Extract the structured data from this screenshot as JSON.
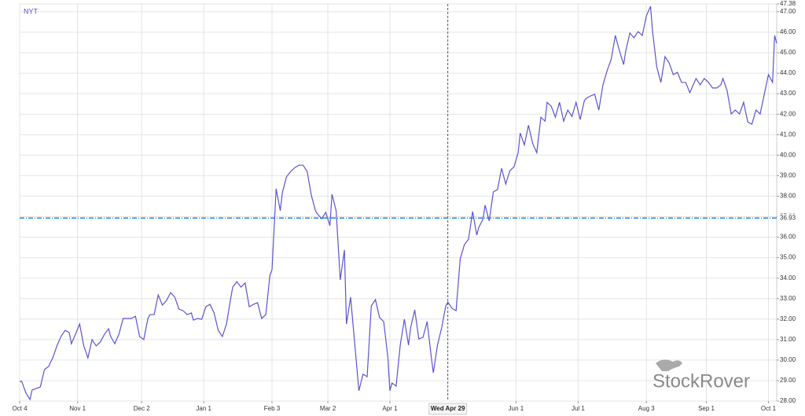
{
  "chart_data": {
    "type": "line",
    "watermark": "StockRover",
    "series": [
      {
        "name": "NYT",
        "color": "#5a55d2",
        "values": [
          28.96,
          28.96,
          28.4,
          28.08,
          28.54,
          28.61,
          28.69,
          29.54,
          29.69,
          30.11,
          30.69,
          31.15,
          31.45,
          31.34,
          30.8,
          31.26,
          31.76,
          30.69,
          30.11,
          31.0,
          30.69,
          30.88,
          31.26,
          31.53,
          31.15,
          30.8,
          31.26,
          32.03,
          32.03,
          32.03,
          32.14,
          31.15,
          31.0,
          32.03,
          32.22,
          32.22,
          33.18,
          32.68,
          32.91,
          33.29,
          33.07,
          32.49,
          32.41,
          32.22,
          32.3,
          31.95,
          32.03,
          31.99,
          32.6,
          32.72,
          32.3,
          31.45,
          31.15,
          31.76,
          32.99,
          33.56,
          33.83,
          33.56,
          33.76,
          32.6,
          32.72,
          32.8,
          32.03,
          32.22,
          34.14,
          34.41,
          38.36,
          37.29,
          38.17,
          38.94,
          39.2,
          39.39,
          39.51,
          39.51,
          39.2,
          38.05,
          37.29,
          37.13,
          36.9,
          37.21,
          36.56,
          38.09,
          37.29,
          33.91,
          35.37,
          31.76,
          33.07,
          30.8,
          28.5,
          29.31,
          29.19,
          32.64,
          32.95,
          32.07,
          31.88,
          30.15,
          28.5,
          28.88,
          28.73,
          30.73,
          31.99,
          30.73,
          31.57,
          32.45,
          31.03,
          31.11,
          31.88,
          30.15,
          29.38,
          30.73,
          31.57,
          32.64,
          32.83,
          32.53,
          32.41,
          34.94,
          35.63,
          35.9,
          37.25,
          36.1,
          36.48,
          36.87,
          37.56,
          36.79,
          38.21,
          38.32,
          39.36,
          38.59,
          39.24,
          39.43,
          40.12,
          41.08,
          40.5,
          41.46,
          40.58,
          40.12,
          41.85,
          41.66,
          42.58,
          42.39,
          41.85,
          42.58,
          41.66,
          42.2,
          41.89,
          42.58,
          41.74,
          42.66,
          42.78,
          42.89,
          42.97,
          42.2,
          43.43,
          44.12,
          44.69,
          45.84,
          45.08,
          44.42,
          45.08,
          45.96,
          45.73,
          46.03,
          45.84,
          46.8,
          47.26,
          46.03,
          44.31,
          43.55,
          44.81,
          44.5,
          43.93,
          44.04,
          43.55,
          43.55,
          43.05,
          43.28,
          43.74,
          43.43,
          43.74,
          43.55,
          43.28,
          43.28,
          43.43,
          43.74,
          43.16,
          42.01,
          42.2,
          42.01,
          42.58,
          41.62,
          41.51,
          42.2,
          42.01,
          42.97,
          43.93,
          43.55,
          45.84,
          45.46
        ]
      }
    ],
    "x": [
      "Oct 4",
      "Oct 5",
      "Oct 7",
      "Oct 9",
      "Oct 10",
      "Oct 12",
      "Oct 14",
      "Oct 16",
      "Oct 18",
      "Oct 20",
      "Oct 22",
      "Oct 24",
      "Oct 26",
      "Oct 28",
      "Oct 29",
      "Oct 31",
      "Nov 2",
      "Nov 4",
      "Nov 6",
      "Nov 8",
      "Nov 10",
      "Nov 12",
      "Nov 14",
      "Nov 16",
      "Nov 17",
      "Nov 19",
      "Nov 21",
      "Nov 23",
      "Nov 25",
      "Nov 27",
      "Nov 29",
      "Dec 1",
      "Dec 3",
      "Dec 5",
      "Dec 6",
      "Dec 8",
      "Dec 10",
      "Dec 12",
      "Dec 14",
      "Dec 16",
      "Dec 18",
      "Dec 20",
      "Dec 22",
      "Dec 24",
      "Dec 26",
      "Dec 27",
      "Dec 29",
      "Dec 31",
      "Jan 2",
      "Jan 4",
      "Jan 6",
      "Jan 8",
      "Jan 10",
      "Jan 12",
      "Jan 14",
      "Jan 15",
      "Jan 17",
      "Jan 19",
      "Jan 21",
      "Jan 23",
      "Jan 25",
      "Jan 27",
      "Jan 29",
      "Jan 31",
      "Feb 2",
      "Feb 3",
      "Feb 5",
      "Feb 7",
      "Feb 8",
      "Feb 10",
      "Feb 12",
      "Feb 14",
      "Feb 16",
      "Feb 18",
      "Feb 20",
      "Feb 22",
      "Feb 24",
      "Feb 25",
      "Feb 27",
      "Mar 1",
      "Mar 3",
      "Mar 4",
      "Mar 6",
      "Mar 8",
      "Mar 10",
      "Mar 11",
      "Mar 13",
      "Mar 15",
      "Mar 17",
      "Mar 19",
      "Mar 21",
      "Mar 23",
      "Mar 25",
      "Mar 27",
      "Mar 29",
      "Mar 31",
      "Apr 1",
      "Apr 2",
      "Apr 4",
      "Apr 6",
      "Apr 8",
      "Apr 10",
      "Apr 11",
      "Apr 13",
      "Apr 15",
      "Apr 17",
      "Apr 19",
      "Apr 21",
      "Apr 22",
      "Apr 24",
      "Apr 26",
      "Apr 28",
      "Apr 29",
      "May 1",
      "May 3",
      "May 5",
      "May 7",
      "May 9",
      "May 11",
      "May 13",
      "May 14",
      "May 16",
      "May 17",
      "May 19",
      "May 21",
      "May 23",
      "May 25",
      "May 27",
      "May 29",
      "May 31",
      "Jun 2",
      "Jun 3",
      "Jun 5",
      "Jun 7",
      "Jun 9",
      "Jun 11",
      "Jun 13",
      "Jun 15",
      "Jun 16",
      "Jun 18",
      "Jun 20",
      "Jun 22",
      "Jun 24",
      "Jun 26",
      "Jun 28",
      "Jun 30",
      "Jul 2",
      "Jul 4",
      "Jul 5",
      "Jul 7",
      "Jul 9",
      "Jul 11",
      "Jul 13",
      "Jul 15",
      "Jul 17",
      "Jul 19",
      "Jul 21",
      "Jul 23",
      "Jul 24",
      "Jul 26",
      "Jul 28",
      "Jul 30",
      "Aug 1",
      "Aug 3",
      "Aug 5",
      "Aug 6",
      "Aug 8",
      "Aug 10",
      "Aug 12",
      "Aug 14",
      "Aug 16",
      "Aug 18",
      "Aug 20",
      "Aug 22",
      "Aug 24",
      "Aug 25",
      "Aug 27",
      "Aug 29",
      "Aug 31",
      "Sep 2",
      "Sep 4",
      "Sep 6",
      "Sep 8",
      "Sep 9",
      "Sep 11",
      "Sep 13",
      "Sep 15",
      "Sep 17",
      "Sep 19",
      "Sep 21",
      "Sep 23",
      "Sep 25",
      "Sep 27",
      "Sep 29",
      "Oct 1",
      "Oct 3",
      "Oct 4",
      "Oct 5"
    ],
    "xticks": [
      "Oct 4",
      "Nov 1",
      "Dec 2",
      "Jan 1",
      "Feb 3",
      "Mar 2",
      "Apr 1",
      "Jun 1",
      "Jul 1",
      "Aug 3",
      "Sep 1",
      "Oct 1"
    ],
    "crosshair_x": "Wed Apr 29",
    "reference_line": {
      "value": 36.93,
      "label": "36.93",
      "color": "#1e88e5"
    },
    "ylim": [
      28,
      47.38
    ],
    "yticks": [
      {
        "value": 28,
        "label": "28.00"
      },
      {
        "value": 29,
        "label": "29.00"
      },
      {
        "value": 30,
        "label": "30.00"
      },
      {
        "value": 31,
        "label": "31.00"
      },
      {
        "value": 32,
        "label": "32.00"
      },
      {
        "value": 33,
        "label": "33.00"
      },
      {
        "value": 34,
        "label": "34.00"
      },
      {
        "value": 35,
        "label": "35.00"
      },
      {
        "value": 36,
        "label": "36.00"
      },
      {
        "value": 37,
        "label": "37.00"
      },
      {
        "value": 38,
        "label": "38.00"
      },
      {
        "value": 39,
        "label": "39.00"
      },
      {
        "value": 40,
        "label": "40.00"
      },
      {
        "value": 41,
        "label": "41.00"
      },
      {
        "value": 42,
        "label": "42.00"
      },
      {
        "value": 43,
        "label": "43.00"
      },
      {
        "value": 44,
        "label": "44.00"
      },
      {
        "value": 45,
        "label": "45.00"
      },
      {
        "value": 46,
        "label": "46.00"
      },
      {
        "value": 47,
        "label": "47.00"
      },
      {
        "value": 47.38,
        "label": "47.38"
      }
    ],
    "grid": true
  }
}
